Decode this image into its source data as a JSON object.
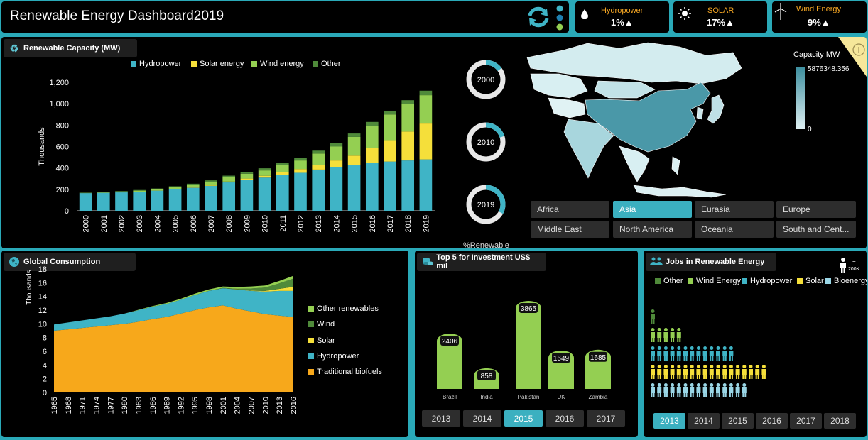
{
  "header": {
    "title": "Renewable Energy Dashboard2019"
  },
  "kpis": [
    {
      "label": "Hydropower",
      "value": "1%▲",
      "icon": "water-drop-icon"
    },
    {
      "label": "SOLAR",
      "value": "17%▲",
      "icon": "sun-icon"
    },
    {
      "label": "Wind Energy",
      "value": "9%▲",
      "icon": "wind-turbine-icon"
    }
  ],
  "capacity": {
    "title": "Renewable Capacity (MW)",
    "legend": [
      "Hydropower",
      "Solar energy",
      "Wind energy",
      "Other"
    ],
    "colors": {
      "hydro": "#3fb4c6",
      "solar": "#f5df3a",
      "wind": "#94cf52",
      "other": "#4f8a3a"
    }
  },
  "donuts": {
    "labels": [
      "2000",
      "2010",
      "2019"
    ],
    "caption": "%Renewable"
  },
  "map": {
    "legend_title": "Capacity MW",
    "max_label": "5876348.356",
    "min_label": "0",
    "regions": [
      "Africa",
      "Asia",
      "Eurasia",
      "Europe",
      "Middle East",
      "North America",
      "Oceania",
      "South and Cent..."
    ],
    "selected": "Asia"
  },
  "consumption": {
    "title": "Global Consumption",
    "legend": [
      "Other renewables",
      "Wind",
      "Solar",
      "Hydropower",
      "Traditional biofuels"
    ],
    "legend_colors": [
      "#94cf52",
      "#4f8a3a",
      "#f5df3a",
      "#3fb4c6",
      "#f7a81b"
    ]
  },
  "investment": {
    "title": "Top 5 for Investment US$ mil",
    "years": [
      "2013",
      "2014",
      "2015",
      "2016",
      "2017"
    ],
    "selected": "2015"
  },
  "jobs": {
    "title": "Jobs in Renewable Energy",
    "legend": [
      "Other",
      "Wind Energy",
      "Hydropower",
      "Solar",
      "Bioenergy"
    ],
    "legend_colors": [
      "#4f8a3a",
      "#94cf52",
      "#3fb4c6",
      "#f5df3a",
      "#9ad6e6"
    ],
    "unit_label": "200K",
    "unit_eq": "=",
    "years": [
      "2013",
      "2014",
      "2015",
      "2016",
      "2017",
      "2018"
    ],
    "selected": "2013",
    "counts": {
      "Other": 1,
      "Wind Energy": 5,
      "Hydropower": 13,
      "Solar": 18,
      "Bioenergy": 15
    }
  },
  "chart_data": [
    {
      "type": "bar",
      "title": "Renewable Capacity (MW)",
      "ylabel": "Thousands",
      "ylim": [
        0,
        1200
      ],
      "yticks": [
        "0",
        "200",
        "400",
        "600",
        "800",
        "1,000",
        "1,200"
      ],
      "categories": [
        "2000",
        "2001",
        "2002",
        "2003",
        "2004",
        "2005",
        "2006",
        "2007",
        "2008",
        "2009",
        "2010",
        "2011",
        "2012",
        "2013",
        "2014",
        "2015",
        "2016",
        "2017",
        "2018",
        "2019"
      ],
      "series": [
        {
          "name": "Hydropower",
          "values": [
            165,
            168,
            172,
            178,
            188,
            200,
            215,
            232,
            265,
            290,
            310,
            335,
            355,
            385,
            410,
            425,
            445,
            460,
            470,
            480
          ]
        },
        {
          "name": "Solar energy",
          "values": [
            0,
            0,
            1,
            1,
            1,
            2,
            3,
            5,
            8,
            11,
            17,
            25,
            35,
            45,
            60,
            90,
            140,
            200,
            270,
            335
          ]
        },
        {
          "name": "Wind energy",
          "values": [
            2,
            4,
            6,
            9,
            12,
            18,
            25,
            35,
            40,
            45,
            50,
            65,
            80,
            105,
            130,
            175,
            210,
            240,
            255,
            265
          ]
        },
        {
          "name": "Other",
          "values": [
            3,
            4,
            5,
            6,
            7,
            9,
            10,
            12,
            15,
            17,
            20,
            22,
            25,
            27,
            30,
            32,
            35,
            35,
            38,
            42
          ]
        }
      ]
    },
    {
      "type": "pie",
      "title": "%Renewable",
      "categories": [
        "2000",
        "2010",
        "2019"
      ],
      "values": [
        15,
        20,
        33
      ]
    },
    {
      "type": "area",
      "title": "Global Consumption",
      "ylabel": "Thousands",
      "ylim": [
        0,
        18
      ],
      "yticks": [
        "0",
        "2",
        "4",
        "6",
        "8",
        "10",
        "12",
        "14",
        "16",
        "18"
      ],
      "x": [
        "1965",
        "1968",
        "1971",
        "1974",
        "1977",
        "1980",
        "1983",
        "1986",
        "1989",
        "1992",
        "1995",
        "1998",
        "2001",
        "2004",
        "2007",
        "2010",
        "2013",
        "2016"
      ],
      "series": [
        {
          "name": "Traditional biofuels",
          "values": [
            9.0,
            9.2,
            9.4,
            9.6,
            9.8,
            10.0,
            10.3,
            10.7,
            11.0,
            11.5,
            12.0,
            12.4,
            12.7,
            12.2,
            11.8,
            11.4,
            11.2,
            11.0
          ]
        },
        {
          "name": "Hydropower",
          "values": [
            0.9,
            1.0,
            1.1,
            1.2,
            1.3,
            1.5,
            1.7,
            1.8,
            1.9,
            2.0,
            2.2,
            2.4,
            2.5,
            2.8,
            3.0,
            3.3,
            3.6,
            3.8
          ]
        },
        {
          "name": "Solar",
          "values": [
            0,
            0,
            0,
            0,
            0,
            0,
            0,
            0,
            0,
            0,
            0,
            0,
            0,
            0.02,
            0.05,
            0.1,
            0.3,
            0.6
          ]
        },
        {
          "name": "Wind",
          "values": [
            0,
            0,
            0,
            0,
            0,
            0,
            0,
            0,
            0,
            0,
            0,
            0.02,
            0.05,
            0.1,
            0.3,
            0.5,
            0.8,
            1.2
          ]
        },
        {
          "name": "Other renewables",
          "values": [
            0,
            0,
            0,
            0,
            0,
            0,
            0.05,
            0.1,
            0.15,
            0.15,
            0.2,
            0.2,
            0.2,
            0.25,
            0.3,
            0.3,
            0.35,
            0.4
          ]
        }
      ]
    },
    {
      "type": "bar",
      "title": "Top 5 for Investment US$ mil",
      "categories": [
        "Brazil",
        "India",
        "Pakistan",
        "UK",
        "Zambia"
      ],
      "values": [
        2406,
        858,
        3865,
        1649,
        1685
      ]
    }
  ]
}
